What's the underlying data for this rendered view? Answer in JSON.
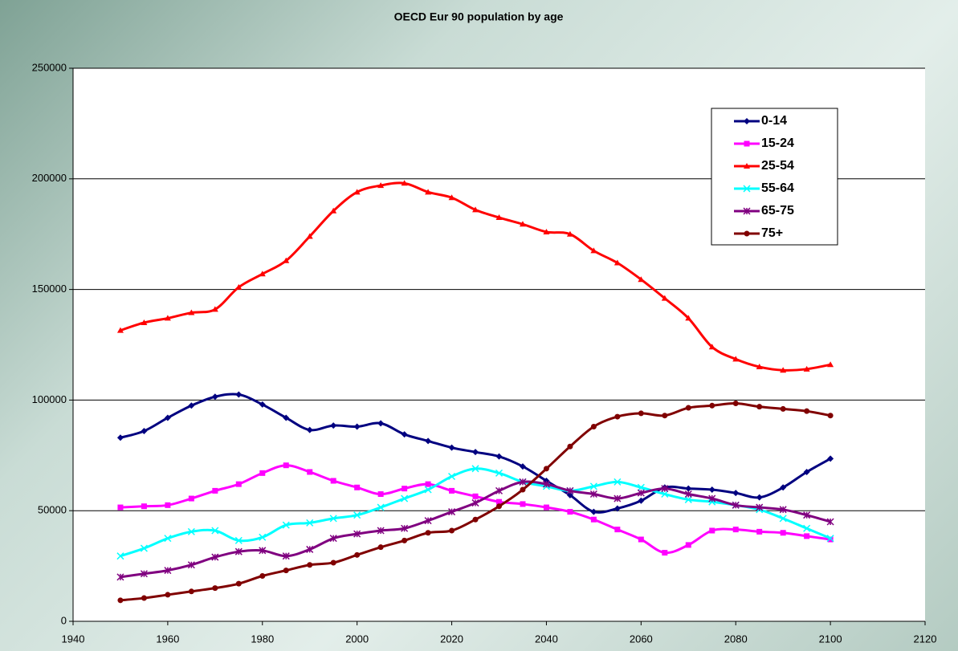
{
  "chart_data": {
    "type": "line",
    "title": "OECD Eur 90 population by age",
    "x": [
      1950,
      1955,
      1960,
      1965,
      1970,
      1975,
      1980,
      1985,
      1990,
      1995,
      2000,
      2005,
      2010,
      2015,
      2020,
      2025,
      2030,
      2035,
      2040,
      2045,
      2050,
      2055,
      2060,
      2065,
      2070,
      2075,
      2080,
      2085,
      2090,
      2095,
      2100
    ],
    "series": [
      {
        "name": "0-14",
        "color": "#000080",
        "marker": "diamond",
        "values": [
          83000,
          86000,
          92000,
          97500,
          101500,
          102500,
          98000,
          92000,
          86500,
          88500,
          88000,
          89500,
          84500,
          81500,
          78500,
          76500,
          74500,
          70000,
          63500,
          57000,
          49500,
          51000,
          54500,
          60500,
          60000,
          59500,
          58000,
          56000,
          60500,
          67500,
          73500
        ]
      },
      {
        "name": "15-24",
        "color": "#ff00ff",
        "marker": "square",
        "values": [
          51500,
          52000,
          52500,
          55500,
          59000,
          62000,
          67000,
          70500,
          67500,
          63500,
          60500,
          57500,
          60000,
          62000,
          59000,
          56500,
          54000,
          53000,
          51500,
          49500,
          46000,
          41500,
          37000,
          31000,
          34500,
          41000,
          41500,
          40500,
          40000,
          38500,
          37000
        ]
      },
      {
        "name": "25-54",
        "color": "#ff0000",
        "marker": "triangle",
        "values": [
          131500,
          135000,
          137000,
          139500,
          141000,
          151000,
          157000,
          163000,
          174000,
          185500,
          194000,
          197000,
          198000,
          194000,
          191500,
          186000,
          182500,
          179500,
          176000,
          175000,
          167500,
          162000,
          154500,
          146000,
          137000,
          124000,
          118500,
          115000,
          113500,
          114000,
          116000
        ]
      },
      {
        "name": "55-64",
        "color": "#00ffff",
        "marker": "x",
        "values": [
          29500,
          33000,
          37500,
          40500,
          41000,
          36500,
          38000,
          43500,
          44500,
          46500,
          48000,
          51500,
          55500,
          59500,
          65500,
          69000,
          67000,
          63000,
          61000,
          59000,
          61000,
          63000,
          60500,
          57500,
          55000,
          54000,
          52500,
          50500,
          46500,
          42000,
          37500
        ]
      },
      {
        "name": "65-75",
        "color": "#800080",
        "marker": "star",
        "values": [
          20000,
          21500,
          23000,
          25500,
          29000,
          31500,
          32000,
          29500,
          32500,
          37500,
          39500,
          41000,
          42000,
          45500,
          49500,
          53500,
          59000,
          63000,
          62000,
          59000,
          57500,
          55500,
          58000,
          60000,
          57500,
          55500,
          52500,
          51500,
          50500,
          48000,
          45000
        ]
      },
      {
        "name": "75+",
        "color": "#800000",
        "marker": "circle",
        "values": [
          9500,
          10500,
          12000,
          13500,
          15000,
          17000,
          20500,
          23000,
          25500,
          26500,
          30000,
          33500,
          36500,
          40000,
          41000,
          46000,
          52000,
          59500,
          69000,
          79000,
          88000,
          92500,
          94000,
          93000,
          96500,
          97500,
          98500,
          97000,
          96000,
          95000,
          93000
        ]
      }
    ],
    "xlim": [
      1940,
      2120
    ],
    "xticks": [
      1940,
      1960,
      1980,
      2000,
      2020,
      2040,
      2060,
      2080,
      2100,
      2120
    ],
    "ylim": [
      0,
      250000
    ],
    "yticks": [
      0,
      50000,
      100000,
      150000,
      200000,
      250000
    ],
    "grid": true,
    "legend": "top-right"
  }
}
